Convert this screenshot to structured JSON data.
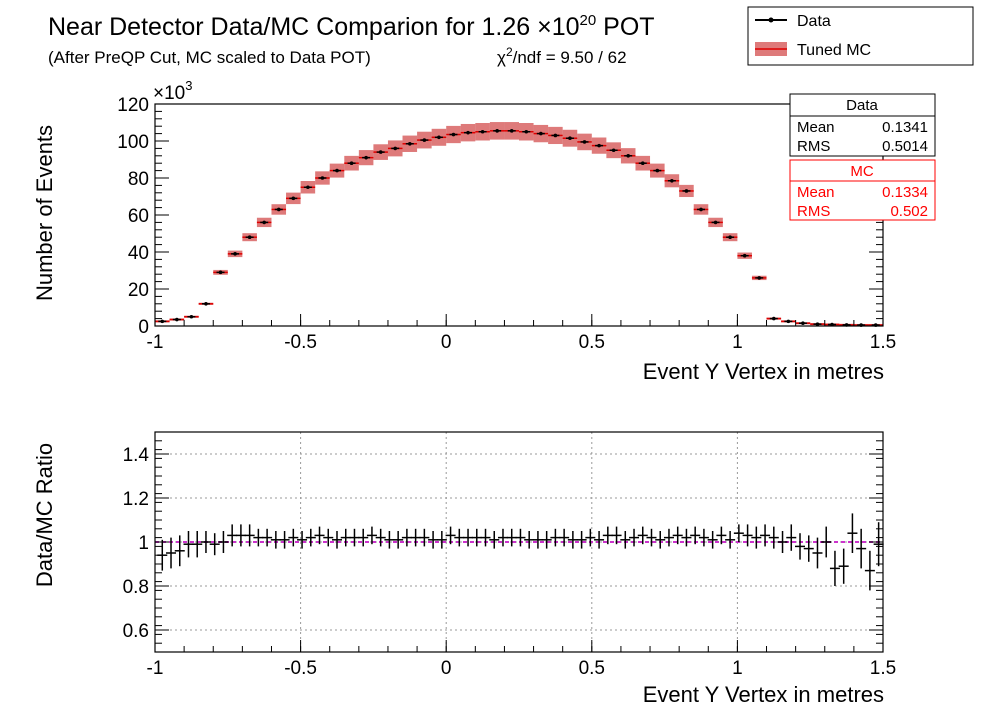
{
  "header": {
    "title_main": "Near Detector Data/MC Comparion for 1.26 ",
    "title_times": "×10",
    "title_exp": "20",
    "title_pot": " POT",
    "subtitle": "(After PreQP Cut, MC scaled to Data POT)",
    "chi2_symbol": "χ",
    "chi2_exp": "2",
    "chi2_rest": "/ndf = 9.50 / 62"
  },
  "legend": {
    "data_label": "Data",
    "mc_label": "Tuned MC",
    "data_color": "#000000",
    "mc_color": "#cc3333"
  },
  "stats": {
    "data": {
      "title": "Data",
      "mean_label": "Mean",
      "mean_value": "0.1341",
      "rms_label": "RMS",
      "rms_value": "0.5014"
    },
    "mc": {
      "title": "MC",
      "mean_label": "Mean",
      "mean_value": "0.1334",
      "rms_label": "RMS",
      "rms_value": "0.502",
      "color": "#ff0000"
    }
  },
  "chart_data": [
    {
      "type": "bar",
      "ylabel": "Number of Events",
      "xlabel": "Event Y Vertex in metres",
      "scale_label": "×10",
      "scale_exp": "3",
      "xlim": [
        -1,
        1.5
      ],
      "ylim": [
        0,
        120
      ],
      "xticks": [
        "-1",
        "-0.5",
        "0",
        "0.5",
        "1",
        "1.5"
      ],
      "yticks": [
        "0",
        "20",
        "40",
        "60",
        "80",
        "100",
        "120"
      ],
      "bin_width": 0.05,
      "series": [
        {
          "name": "Data",
          "x": [
            -0.975,
            -0.925,
            -0.875,
            -0.825,
            -0.775,
            -0.725,
            -0.675,
            -0.625,
            -0.575,
            -0.525,
            -0.475,
            -0.425,
            -0.375,
            -0.325,
            -0.275,
            -0.225,
            -0.175,
            -0.125,
            -0.075,
            -0.025,
            0.025,
            0.075,
            0.125,
            0.175,
            0.225,
            0.275,
            0.325,
            0.375,
            0.425,
            0.475,
            0.525,
            0.575,
            0.625,
            0.675,
            0.725,
            0.775,
            0.825,
            0.875,
            0.925,
            0.975,
            1.025,
            1.075,
            1.125,
            1.175,
            1.225,
            1.275,
            1.325,
            1.375,
            1.425,
            1.475
          ],
          "values": [
            2.5,
            3.5,
            5,
            12,
            29,
            39,
            48,
            56,
            63,
            69,
            75,
            80,
            84,
            88,
            91,
            94,
            96,
            98.5,
            100.5,
            102,
            103.5,
            104.5,
            105,
            105.5,
            105.5,
            105,
            104,
            103,
            101.5,
            99.5,
            97.5,
            95,
            92,
            88,
            84,
            78.5,
            73,
            63,
            56,
            48,
            38,
            26,
            4,
            2.5,
            1.5,
            1,
            0.8,
            0.6,
            0.5,
            0.5
          ]
        },
        {
          "name": "Tuned MC",
          "values": [
            2.5,
            3.5,
            5,
            12,
            29,
            39,
            48,
            56,
            63,
            69,
            75,
            80,
            84,
            88,
            91,
            94,
            96,
            98.5,
            100.5,
            102,
            103.5,
            104.5,
            105,
            105.5,
            105.5,
            105,
            104,
            103,
            101.5,
            99.5,
            97.5,
            95,
            92,
            88,
            84,
            78.5,
            73,
            63,
            56,
            48,
            38,
            26,
            4,
            2.5,
            1.5,
            1,
            0.8,
            0.6,
            0.5,
            0.5
          ],
          "band_halfwidth_pct": 4.5
        }
      ]
    },
    {
      "type": "scatter",
      "ylabel": "Data/MC Ratio",
      "xlabel": "Event Y Vertex in metres",
      "xlim": [
        -1,
        1.5
      ],
      "ylim": [
        0.5,
        1.5
      ],
      "xticks": [
        "-1",
        "-0.5",
        "0",
        "0.5",
        "1",
        "1.5"
      ],
      "yticks": [
        "0.6",
        "0.8",
        "1",
        "1.2",
        "1.4"
      ],
      "reference_line": 1,
      "reference_color": "#cc33cc",
      "series": [
        {
          "name": "Data/MC",
          "x": [
            -0.975,
            -0.945,
            -0.915,
            -0.885,
            -0.855,
            -0.825,
            -0.795,
            -0.765,
            -0.735,
            -0.705,
            -0.675,
            -0.645,
            -0.615,
            -0.585,
            -0.555,
            -0.525,
            -0.495,
            -0.465,
            -0.435,
            -0.405,
            -0.375,
            -0.345,
            -0.315,
            -0.285,
            -0.255,
            -0.225,
            -0.195,
            -0.165,
            -0.135,
            -0.105,
            -0.075,
            -0.045,
            -0.015,
            0.015,
            0.045,
            0.075,
            0.105,
            0.135,
            0.165,
            0.195,
            0.225,
            0.255,
            0.285,
            0.315,
            0.345,
            0.375,
            0.405,
            0.435,
            0.465,
            0.495,
            0.525,
            0.555,
            0.585,
            0.615,
            0.645,
            0.675,
            0.705,
            0.735,
            0.765,
            0.795,
            0.825,
            0.855,
            0.885,
            0.915,
            0.945,
            0.975,
            1.005,
            1.035,
            1.065,
            1.095,
            1.125,
            1.155,
            1.185,
            1.215,
            1.245,
            1.275,
            1.305,
            1.335,
            1.365,
            1.395,
            1.425,
            1.455,
            1.485
          ],
          "values": [
            0.94,
            0.95,
            0.96,
            0.99,
            0.99,
            1.0,
            0.99,
            1.0,
            1.03,
            1.03,
            1.03,
            1.02,
            1.02,
            1.01,
            1.01,
            1.02,
            1.01,
            1.02,
            1.03,
            1.02,
            1.01,
            1.02,
            1.02,
            1.02,
            1.03,
            1.02,
            1.01,
            1.01,
            1.02,
            1.02,
            1.02,
            1.01,
            1.01,
            1.03,
            1.02,
            1.02,
            1.02,
            1.02,
            1.01,
            1.02,
            1.02,
            1.02,
            1.01,
            1.01,
            1.01,
            1.02,
            1.02,
            1.01,
            1.01,
            1.02,
            1.01,
            1.03,
            1.03,
            1.01,
            1.02,
            1.03,
            1.02,
            1.01,
            1.02,
            1.03,
            1.02,
            1.03,
            1.02,
            1.01,
            1.03,
            1.01,
            1.04,
            1.03,
            1.02,
            1.03,
            1.02,
            1.0,
            1.02,
            0.98,
            0.97,
            0.95,
            1.0,
            0.88,
            0.89,
            1.04,
            0.97,
            0.87,
            0.99
          ],
          "errors": [
            0.07,
            0.07,
            0.07,
            0.06,
            0.06,
            0.05,
            0.05,
            0.05,
            0.05,
            0.05,
            0.05,
            0.04,
            0.04,
            0.04,
            0.04,
            0.04,
            0.04,
            0.04,
            0.04,
            0.04,
            0.04,
            0.04,
            0.04,
            0.04,
            0.04,
            0.04,
            0.04,
            0.04,
            0.04,
            0.04,
            0.04,
            0.04,
            0.04,
            0.04,
            0.04,
            0.04,
            0.04,
            0.04,
            0.04,
            0.04,
            0.04,
            0.04,
            0.04,
            0.04,
            0.04,
            0.04,
            0.04,
            0.04,
            0.04,
            0.04,
            0.04,
            0.04,
            0.04,
            0.04,
            0.04,
            0.04,
            0.04,
            0.04,
            0.04,
            0.04,
            0.04,
            0.04,
            0.04,
            0.04,
            0.04,
            0.04,
            0.04,
            0.05,
            0.05,
            0.05,
            0.05,
            0.05,
            0.06,
            0.06,
            0.06,
            0.07,
            0.07,
            0.08,
            0.08,
            0.09,
            0.09,
            0.09,
            0.1
          ]
        }
      ]
    }
  ]
}
